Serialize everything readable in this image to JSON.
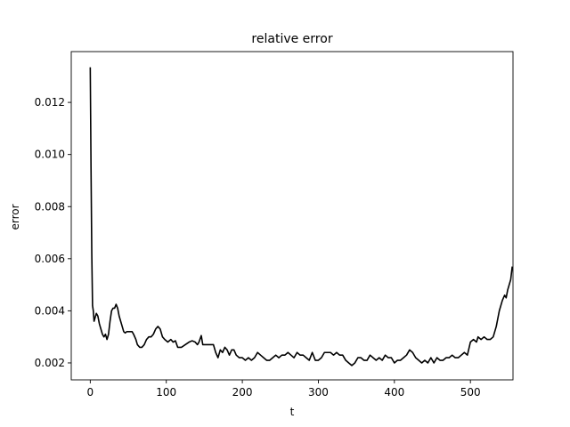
{
  "chart_data": {
    "type": "line",
    "title": "relative error",
    "xlabel": "t",
    "ylabel": "error",
    "xlim": [
      -25,
      556
    ],
    "ylim": [
      0.00135,
      0.01395
    ],
    "xticks": [
      0,
      100,
      200,
      300,
      400,
      500
    ],
    "yticks": [
      0.002,
      0.004,
      0.006,
      0.008,
      0.01,
      0.012
    ],
    "ytick_labels": [
      "0.002",
      "0.004",
      "0.006",
      "0.008",
      "0.010",
      "0.012"
    ],
    "grid": false,
    "series": [
      {
        "name": "",
        "color": "#000000",
        "points": [
          [
            0,
            0.01335
          ],
          [
            1,
            0.0095
          ],
          [
            2,
            0.0062
          ],
          [
            3,
            0.0042
          ],
          [
            4,
            0.004
          ],
          [
            5,
            0.0036
          ],
          [
            6,
            0.0037
          ],
          [
            8,
            0.0039
          ],
          [
            10,
            0.0038
          ],
          [
            12,
            0.0035
          ],
          [
            14,
            0.0033
          ],
          [
            16,
            0.0031
          ],
          [
            18,
            0.003
          ],
          [
            20,
            0.0031
          ],
          [
            22,
            0.0029
          ],
          [
            24,
            0.0031
          ],
          [
            26,
            0.0036
          ],
          [
            28,
            0.004
          ],
          [
            30,
            0.0041
          ],
          [
            32,
            0.0041
          ],
          [
            34,
            0.00425
          ],
          [
            36,
            0.0041
          ],
          [
            38,
            0.0038
          ],
          [
            40,
            0.0036
          ],
          [
            42,
            0.0034
          ],
          [
            44,
            0.0032
          ],
          [
            46,
            0.00315
          ],
          [
            48,
            0.0032
          ],
          [
            52,
            0.0032
          ],
          [
            55,
            0.0032
          ],
          [
            57,
            0.0031
          ],
          [
            60,
            0.0029
          ],
          [
            62,
            0.0027
          ],
          [
            65,
            0.0026
          ],
          [
            68,
            0.0026
          ],
          [
            71,
            0.0027
          ],
          [
            74,
            0.0029
          ],
          [
            77,
            0.003
          ],
          [
            80,
            0.003
          ],
          [
            83,
            0.0031
          ],
          [
            86,
            0.0033
          ],
          [
            89,
            0.0034
          ],
          [
            92,
            0.0033
          ],
          [
            95,
            0.003
          ],
          [
            98,
            0.0029
          ],
          [
            102,
            0.0028
          ],
          [
            106,
            0.0029
          ],
          [
            109,
            0.0028
          ],
          [
            112,
            0.00285
          ],
          [
            115,
            0.0026
          ],
          [
            120,
            0.0026
          ],
          [
            125,
            0.0027
          ],
          [
            130,
            0.0028
          ],
          [
            134,
            0.00285
          ],
          [
            138,
            0.0028
          ],
          [
            141,
            0.0027
          ],
          [
            143,
            0.0028
          ],
          [
            146,
            0.00305
          ],
          [
            148,
            0.0027
          ],
          [
            152,
            0.0027
          ],
          [
            157,
            0.0027
          ],
          [
            162,
            0.0027
          ],
          [
            165,
            0.0024
          ],
          [
            168,
            0.0022
          ],
          [
            171,
            0.0025
          ],
          [
            174,
            0.0024
          ],
          [
            177,
            0.0026
          ],
          [
            180,
            0.0025
          ],
          [
            183,
            0.0023
          ],
          [
            186,
            0.0025
          ],
          [
            189,
            0.0025
          ],
          [
            192,
            0.0023
          ],
          [
            196,
            0.0022
          ],
          [
            200,
            0.0022
          ],
          [
            204,
            0.0021
          ],
          [
            208,
            0.0022
          ],
          [
            212,
            0.0021
          ],
          [
            216,
            0.0022
          ],
          [
            220,
            0.0024
          ],
          [
            224,
            0.0023
          ],
          [
            228,
            0.0022
          ],
          [
            232,
            0.0021
          ],
          [
            236,
            0.0021
          ],
          [
            240,
            0.0022
          ],
          [
            244,
            0.0023
          ],
          [
            248,
            0.0022
          ],
          [
            252,
            0.0023
          ],
          [
            256,
            0.0023
          ],
          [
            260,
            0.0024
          ],
          [
            264,
            0.0023
          ],
          [
            268,
            0.0022
          ],
          [
            272,
            0.0024
          ],
          [
            276,
            0.0023
          ],
          [
            280,
            0.0023
          ],
          [
            284,
            0.0022
          ],
          [
            288,
            0.0021
          ],
          [
            292,
            0.0024
          ],
          [
            296,
            0.0021
          ],
          [
            300,
            0.0021
          ],
          [
            304,
            0.0022
          ],
          [
            308,
            0.0024
          ],
          [
            312,
            0.0024
          ],
          [
            316,
            0.0024
          ],
          [
            320,
            0.0023
          ],
          [
            324,
            0.0024
          ],
          [
            328,
            0.0023
          ],
          [
            332,
            0.0023
          ],
          [
            336,
            0.0021
          ],
          [
            340,
            0.002
          ],
          [
            344,
            0.0019
          ],
          [
            348,
            0.002
          ],
          [
            352,
            0.0022
          ],
          [
            356,
            0.0022
          ],
          [
            360,
            0.0021
          ],
          [
            364,
            0.0021
          ],
          [
            368,
            0.0023
          ],
          [
            372,
            0.0022
          ],
          [
            376,
            0.0021
          ],
          [
            380,
            0.0022
          ],
          [
            384,
            0.0021
          ],
          [
            388,
            0.0023
          ],
          [
            392,
            0.0022
          ],
          [
            396,
            0.0022
          ],
          [
            400,
            0.002
          ],
          [
            404,
            0.0021
          ],
          [
            408,
            0.0021
          ],
          [
            412,
            0.0022
          ],
          [
            416,
            0.0023
          ],
          [
            420,
            0.0025
          ],
          [
            424,
            0.0024
          ],
          [
            428,
            0.0022
          ],
          [
            432,
            0.0021
          ],
          [
            436,
            0.002
          ],
          [
            440,
            0.0021
          ],
          [
            444,
            0.002
          ],
          [
            448,
            0.0022
          ],
          [
            452,
            0.002
          ],
          [
            456,
            0.0022
          ],
          [
            460,
            0.0021
          ],
          [
            464,
            0.0021
          ],
          [
            468,
            0.0022
          ],
          [
            472,
            0.0022
          ],
          [
            476,
            0.0023
          ],
          [
            480,
            0.0022
          ],
          [
            484,
            0.0022
          ],
          [
            488,
            0.0023
          ],
          [
            492,
            0.0024
          ],
          [
            496,
            0.0023
          ],
          [
            500,
            0.0028
          ],
          [
            504,
            0.0029
          ],
          [
            508,
            0.0028
          ],
          [
            510,
            0.003
          ],
          [
            514,
            0.0029
          ],
          [
            518,
            0.003
          ],
          [
            522,
            0.0029
          ],
          [
            526,
            0.0029
          ],
          [
            530,
            0.003
          ],
          [
            534,
            0.0034
          ],
          [
            538,
            0.004
          ],
          [
            542,
            0.0044
          ],
          [
            545,
            0.0046
          ],
          [
            547,
            0.0045
          ],
          [
            549,
            0.0048
          ],
          [
            551,
            0.005
          ],
          [
            553,
            0.0052
          ],
          [
            555,
            0.0057
          ]
        ]
      }
    ]
  }
}
